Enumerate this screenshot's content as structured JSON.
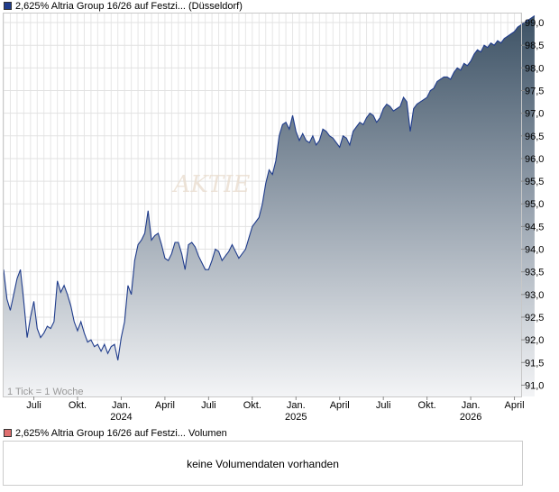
{
  "legend": {
    "price_label": "2,625% Altria Group 16/26 auf Festzi... (Düsseldorf)",
    "price_color": "#1f3c8c",
    "volume_label": "2,625% Altria Group 16/26 auf Festzi... Volumen",
    "volume_color": "#e07070"
  },
  "chart_note": "1 Tick = 1 Woche",
  "watermark": "AKTIE",
  "volume_message": "keine Volumendaten vorhanden",
  "chart_data": {
    "type": "area",
    "y_ticks": [
      "91,0",
      "91,5",
      "92,0",
      "92,5",
      "93,0",
      "93,5",
      "94,0",
      "94,5",
      "95,0",
      "95,5",
      "96,0",
      "96,5",
      "97,0",
      "97,5",
      "98,0",
      "98,5",
      "99,0"
    ],
    "y_tick_values": [
      91.0,
      91.5,
      92.0,
      92.5,
      93.0,
      93.5,
      94.0,
      94.5,
      95.0,
      95.5,
      96.0,
      96.5,
      97.0,
      97.5,
      98.0,
      98.5,
      99.0
    ],
    "ylim": [
      90.75,
      99.2
    ],
    "x_ticks": [
      {
        "label": "Juli",
        "year": "",
        "index": 9
      },
      {
        "label": "Okt.",
        "year": "",
        "index": 22
      },
      {
        "label": "Jan.",
        "year": "2024",
        "index": 35
      },
      {
        "label": "April",
        "year": "",
        "index": 48
      },
      {
        "label": "Juli",
        "year": "",
        "index": 61
      },
      {
        "label": "Okt.",
        "year": "",
        "index": 74
      },
      {
        "label": "Jan.",
        "year": "2025",
        "index": 87
      },
      {
        "label": "April",
        "year": "",
        "index": 100
      },
      {
        "label": "Juli",
        "year": "",
        "index": 113
      },
      {
        "label": "Okt.",
        "year": "",
        "index": 126
      },
      {
        "label": "Jan.",
        "year": "2026",
        "index": 139
      },
      {
        "label": "April",
        "year": "",
        "index": 152
      }
    ],
    "x_count": 155,
    "series": [
      {
        "values": [
          93.55,
          92.9,
          92.65,
          93.0,
          93.35,
          93.55,
          92.85,
          92.05,
          92.5,
          92.85,
          92.25,
          92.05,
          92.15,
          92.3,
          92.25,
          92.4,
          93.3,
          93.05,
          93.2,
          93.0,
          92.75,
          92.4,
          92.2,
          92.4,
          92.15,
          91.95,
          92.0,
          91.85,
          91.9,
          91.75,
          91.9,
          91.7,
          91.85,
          91.9,
          91.55,
          92.05,
          92.4,
          93.2,
          93.0,
          93.75,
          94.1,
          94.2,
          94.35,
          94.85,
          94.2,
          94.3,
          94.35,
          94.1,
          93.8,
          93.75,
          93.9,
          94.15,
          94.15,
          93.9,
          93.55,
          94.1,
          94.15,
          94.05,
          93.85,
          93.7,
          93.55,
          93.55,
          93.75,
          94.0,
          93.95,
          93.75,
          93.85,
          93.95,
          94.1,
          93.95,
          93.8,
          93.9,
          94.0,
          94.25,
          94.5,
          94.6,
          94.7,
          95.0,
          95.45,
          95.75,
          95.65,
          95.95,
          96.5,
          96.75,
          96.8,
          96.65,
          96.95,
          96.6,
          96.4,
          96.55,
          96.4,
          96.35,
          96.5,
          96.3,
          96.4,
          96.65,
          96.6,
          96.5,
          96.45,
          96.35,
          96.25,
          96.5,
          96.45,
          96.3,
          96.6,
          96.7,
          96.8,
          96.75,
          96.9,
          97.0,
          96.95,
          96.8,
          96.9,
          97.1,
          97.2,
          97.15,
          97.05,
          97.1,
          97.15,
          97.35,
          97.25,
          96.6,
          97.1,
          97.2,
          97.25,
          97.3,
          97.35,
          97.5,
          97.55,
          97.7,
          97.75,
          97.8,
          97.8,
          97.75,
          97.9,
          98.0,
          97.95,
          98.1,
          98.05,
          98.15,
          98.3,
          98.4,
          98.35,
          98.5,
          98.45,
          98.55,
          98.5,
          98.6,
          98.55,
          98.65,
          98.7,
          98.75,
          98.8,
          98.9,
          98.95,
          99.0,
          99.05,
          99.1,
          99.15
        ]
      }
    ]
  }
}
